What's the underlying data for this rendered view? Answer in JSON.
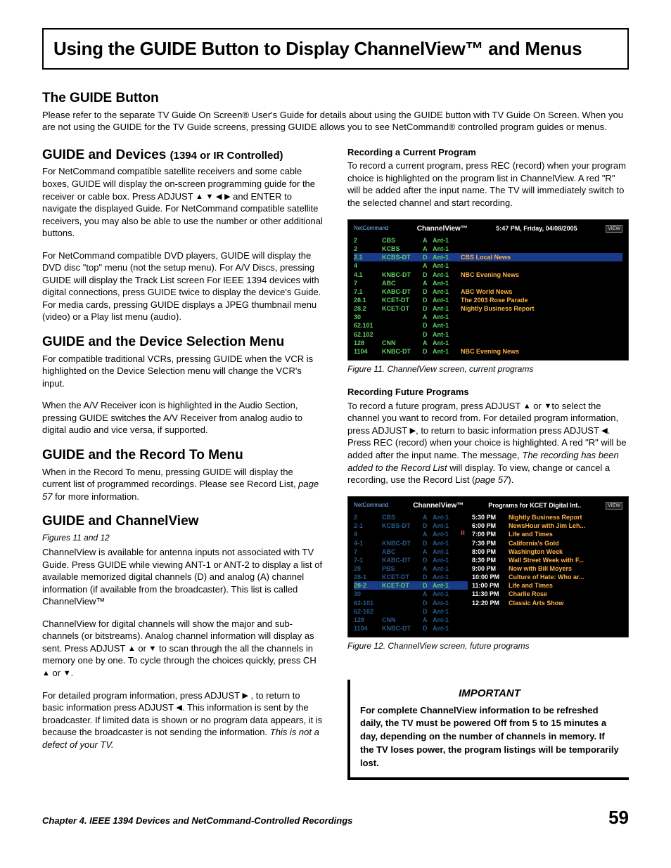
{
  "page": {
    "title": "Using the GUIDE Button to Display ChannelView™ and Menus",
    "footer_chapter": "Chapter 4. IEEE 1394 Devices and NetCommand-Controlled Recordings",
    "page_number": "59"
  },
  "arrows": {
    "up": "▲",
    "down": "▼",
    "left": "◀",
    "right": "▶"
  },
  "intro": {
    "heading": "The GUIDE Button",
    "body": "Please refer to the separate TV Guide On Screen® User's Guide for details about using the GUIDE button with TV Guide On Screen.  When you are not using the GUIDE for the TV Guide screens, pressing GUIDE allows you to see NetCommand® controlled program guides or menus."
  },
  "left": {
    "sec1": {
      "heading": "GUIDE and Devices",
      "heading_paren": "(1394 or IR Controlled)",
      "p1a": "For NetCommand compatible satellite receivers and some cable boxes, GUIDE will display the on-screen programming guide for the receiver or cable box.  Press ADJUST ",
      "p1b": " and ENTER to navigate the displayed Guide.  For NetCommand compatible satellite receivers, you may also be able to use the number or other additional buttons.",
      "p2": "For NetCommand compatible DVD players, GUIDE will display the DVD disc \"top\" menu (not the setup menu).  For A/V Discs, pressing GUIDE will display the Track List screen For IEEE 1394 devices with digital connections, press GUIDE twice to display the device's Guide.  For media cards, pressing GUIDE displays a JPEG thumbnail menu (video) or a Play list menu (audio)."
    },
    "sec2": {
      "heading": "GUIDE and the Device Selection Menu",
      "p1": "For compatible traditional VCRs, pressing GUIDE when the VCR is highlighted on the Device Selection menu will change the VCR's input.",
      "p2": "When the A/V Receiver icon is highlighted in the Audio Section, pressing GUIDE switches the A/V Receiver from analog audio to digital audio and vice versa, if supported."
    },
    "sec3": {
      "heading": "GUIDE and the Record To Menu",
      "p1a": "When in the Record To menu, pressing GUIDE will display the current list of programmed recordings.  Please see Record List, ",
      "p1_italic": "page 57",
      "p1b": " for more information."
    },
    "sec4": {
      "heading": "GUIDE and ChannelView",
      "subcaption": "Figures 11 and 12",
      "p1": "ChannelView is available for antenna inputs not associated with TV Guide.  Press GUIDE while viewing ANT-1 or ANT-2 to display a list of available memorized digital channels (D) and analog (A) channel information (if available from the broadcaster).  This list is called ChannelView™",
      "p2a": "ChannelView for digital channels will show the major and sub-channels (or bitstreams).  Analog channel information will display as sent.  Press ADJUST ",
      "p2b": " to scan through the all the channels in memory one by one.  To cycle through the choices quickly, press CH ",
      "p2c": ".",
      "p3a": "For detailed program information, press ADJUST ",
      "p3b": " , to return to basic information press ADJUST ",
      "p3c": ".  This information is sent by the broadcaster.  If limited data is shown or no program data appears, it is because the broadcaster is not sending the information.  ",
      "p3_italic": "This is not a defect of your TV."
    }
  },
  "right": {
    "rec_current": {
      "heading": "Recording a Current Program",
      "body": "To record a current program, press REC (record) when your program choice is highlighted on the program list in ChannelView.  A red \"R\" will be added after the input name.  The TV will immediately switch to the selected channel and start recording."
    },
    "fig11_caption": "Figure 11. ChannelView screen, current programs",
    "rec_future": {
      "heading": "Recording Future Programs",
      "p1a": "To record a future program, press ADJUST  ",
      "p1b": "to select the channel you want to record from.  For detailed program information, press ADJUST ",
      "p1c": ", to return to basic information press ADJUST ",
      "p1d": ".  Press REC (record) when your choice is highlighted.  A red \"R\" will be added after the input name.  The message, ",
      "p1_italic": "The recording has been added to the Record List",
      "p1e": " will display.  To view, change or cancel a recording, use the Record List (",
      "p1_italic2": "page 57",
      "p1f": ")."
    },
    "fig12_caption": "Figure 12. ChannelView screen, future programs",
    "important": {
      "title": "IMPORTANT",
      "body": "For complete ChannelView information to be refreshed daily, the TV must be powered Off from 5 to 15 minutes a day, depending on the number of channels in memory.  If the TV loses power, the program listings will be temporarily  lost."
    }
  },
  "cv1": {
    "brand": "NetCommand",
    "title": "ChannelView™",
    "datetime": "5:47 PM, Friday, 04/08/2005",
    "badge": "VIEW",
    "highlight_ch": "2.1",
    "rows": [
      {
        "ch": "2",
        "name": "CBS",
        "type": "A",
        "ant": "Ant-1",
        "prog": ""
      },
      {
        "ch": "2",
        "name": "KCBS",
        "type": "A",
        "ant": "Ant-1",
        "prog": ""
      },
      {
        "ch": "2.1",
        "name": "KCBS-DT",
        "type": "D",
        "ant": "Ant-1",
        "prog": "CBS Local News"
      },
      {
        "ch": "4",
        "name": "",
        "type": "A",
        "ant": "Ant-1",
        "prog": ""
      },
      {
        "ch": "4.1",
        "name": "KNBC-DT",
        "type": "D",
        "ant": "Ant-1",
        "prog": "NBC Evening News"
      },
      {
        "ch": "7",
        "name": "ABC",
        "type": "A",
        "ant": "Ant-1",
        "prog": ""
      },
      {
        "ch": "7.1",
        "name": "KABC-DT",
        "type": "D",
        "ant": "Ant-1",
        "prog": "ABC World News"
      },
      {
        "ch": "28.1",
        "name": "KCET-DT",
        "type": "D",
        "ant": "Ant-1",
        "prog": "The 2003 Rose Parade"
      },
      {
        "ch": "28.2",
        "name": "KCET-DT",
        "type": "D",
        "ant": "Ant-1",
        "prog": "Nightly Business Report"
      },
      {
        "ch": "30",
        "name": "",
        "type": "A",
        "ant": "Ant-1",
        "prog": ""
      },
      {
        "ch": "62.101",
        "name": "",
        "type": "D",
        "ant": "Ant-1",
        "prog": ""
      },
      {
        "ch": "62.102",
        "name": "",
        "type": "D",
        "ant": "Ant-1",
        "prog": ""
      },
      {
        "ch": "128",
        "name": "CNN",
        "type": "A",
        "ant": "Ant-1",
        "prog": ""
      },
      {
        "ch": "1104",
        "name": "KNBC-DT",
        "type": "D",
        "ant": "Ant-1",
        "prog": "NBC Evening News"
      }
    ]
  },
  "cv2": {
    "brand": "NetCommand",
    "title": "ChannelView™",
    "right_label": "Programs for KCET Digital Int..",
    "badge": "VIEW",
    "highlight_ch": "28-2",
    "rec_ch": "4",
    "channels": [
      {
        "ch": "2",
        "name": "CBS",
        "type": "A",
        "ant": "Ant-1"
      },
      {
        "ch": "2-1",
        "name": "KCBS-DT",
        "type": "D",
        "ant": "Ant-1"
      },
      {
        "ch": "4",
        "name": "",
        "type": "A",
        "ant": "Ant-1"
      },
      {
        "ch": "4-1",
        "name": "KNBC-DT",
        "type": "D",
        "ant": "Ant-1"
      },
      {
        "ch": "7",
        "name": "ABC",
        "type": "A",
        "ant": "Ant-1"
      },
      {
        "ch": "7-1",
        "name": "KABC-DT",
        "type": "D",
        "ant": "Ant-1"
      },
      {
        "ch": "28",
        "name": "PBS",
        "type": "A",
        "ant": "Ant-1"
      },
      {
        "ch": "28-1",
        "name": "KCET-DT",
        "type": "D",
        "ant": "Ant-1"
      },
      {
        "ch": "28-2",
        "name": "KCET-DT",
        "type": "D",
        "ant": "Ant-1"
      },
      {
        "ch": "30",
        "name": "",
        "type": "A",
        "ant": "Ant-1"
      },
      {
        "ch": "62-101",
        "name": "",
        "type": "D",
        "ant": "Ant-1"
      },
      {
        "ch": "62-102",
        "name": "",
        "type": "D",
        "ant": "Ant-1"
      },
      {
        "ch": "128",
        "name": "CNN",
        "type": "A",
        "ant": "Ant-1"
      },
      {
        "ch": "1104",
        "name": "KNBC-DT",
        "type": "D",
        "ant": "Ant-1"
      }
    ],
    "programs": [
      {
        "time": "5:30 PM",
        "prog": "Nightly Business Report"
      },
      {
        "time": "6:00 PM",
        "prog": "NewsHour with Jim Leh..."
      },
      {
        "time": "7:00 PM",
        "prog": "Life and Times"
      },
      {
        "time": "7:30 PM",
        "prog": "California's Gold"
      },
      {
        "time": "8:00 PM",
        "prog": "Washington Week"
      },
      {
        "time": "8:30 PM",
        "prog": "Wall Street Week with F..."
      },
      {
        "time": "9:00 PM",
        "prog": "Now with Bill Moyers"
      },
      {
        "time": "10:00 PM",
        "prog": "Culture of Hate: Who ar..."
      },
      {
        "time": "11:00 PM",
        "prog": "Life and Times"
      },
      {
        "time": "11:30 PM",
        "prog": "Charlie Rose"
      },
      {
        "time": "12:20 PM",
        "prog": "Classic Arts Show"
      }
    ]
  }
}
